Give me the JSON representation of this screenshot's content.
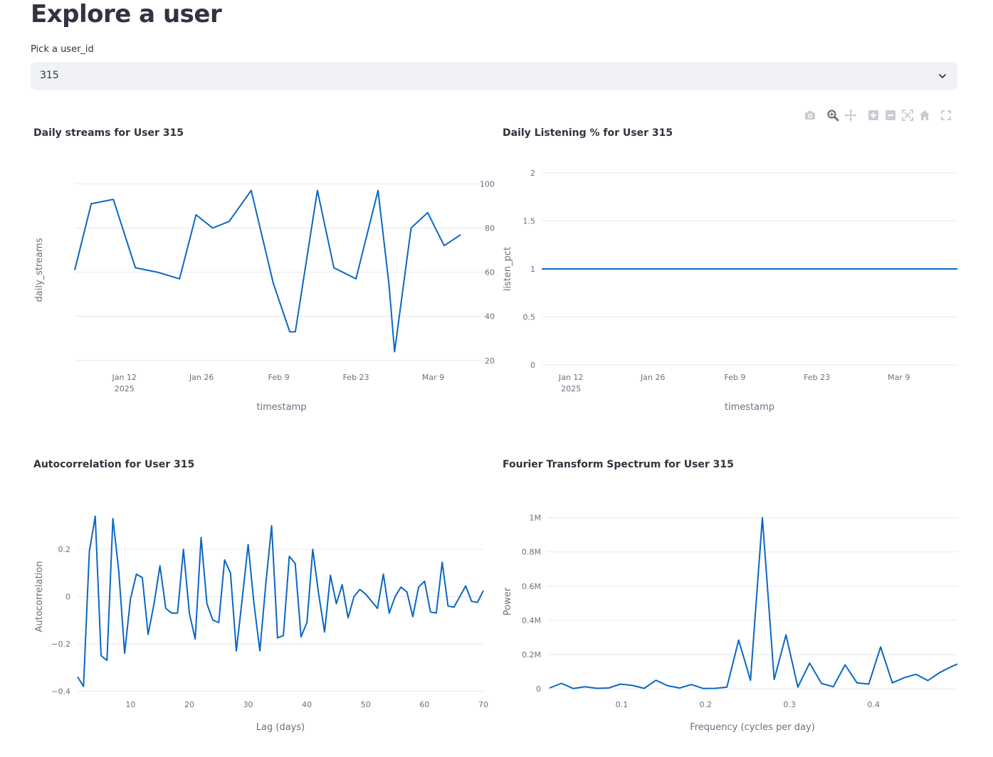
{
  "page": {
    "title": "Explore a user"
  },
  "user_select": {
    "label": "Pick a user_id",
    "value": "315"
  },
  "modebar": {
    "icons": [
      "camera-icon",
      "zoom-icon",
      "pan-icon",
      "zoom-in-icon",
      "zoom-out-icon",
      "autoscale-icon",
      "reset-axes-icon",
      "fullscreen-icon"
    ]
  },
  "colors": {
    "line": "#0b67c2",
    "grid": "#e6e9ef",
    "tick": "#6b7080",
    "accent_bg": "#f0f2f6"
  },
  "chart_data": [
    {
      "id": "streams",
      "type": "line",
      "title": "Daily streams for User 315",
      "xlabel": "timestamp",
      "ylabel": "daily_streams",
      "x_type": "date",
      "xlim": [
        "2025-01-03",
        "2025-03-19"
      ],
      "ylim": [
        18,
        104
      ],
      "xticks": [
        {
          "value": "2025-01-12",
          "label": "Jan 12",
          "sublabel": "2025"
        },
        {
          "value": "2025-01-26",
          "label": "Jan 26"
        },
        {
          "value": "2025-02-09",
          "label": "Feb 9"
        },
        {
          "value": "2025-02-23",
          "label": "Feb 23"
        },
        {
          "value": "2025-03-09",
          "label": "Mar 9"
        }
      ],
      "yticks": [
        {
          "value": 20,
          "label": "20"
        },
        {
          "value": 40,
          "label": "40"
        },
        {
          "value": 60,
          "label": "60"
        },
        {
          "value": 80,
          "label": "80"
        },
        {
          "value": 100,
          "label": "100"
        }
      ],
      "x": [
        "2025-01-03",
        "2025-01-06",
        "2025-01-10",
        "2025-01-14",
        "2025-01-18",
        "2025-01-22",
        "2025-01-25",
        "2025-01-28",
        "2025-01-31",
        "2025-02-04",
        "2025-02-08",
        "2025-02-11",
        "2025-02-12",
        "2025-02-16",
        "2025-02-19",
        "2025-02-23",
        "2025-02-27",
        "2025-03-01",
        "2025-03-02",
        "2025-03-05",
        "2025-03-08",
        "2025-03-11",
        "2025-03-14"
      ],
      "y": [
        61,
        91,
        93,
        62,
        60,
        57,
        86,
        80,
        83,
        97,
        55,
        33,
        33,
        97,
        62,
        57,
        97,
        54,
        24,
        80,
        87,
        72,
        77
      ]
    },
    {
      "id": "listening",
      "type": "line",
      "title": "Daily Listening % for User 315",
      "xlabel": "timestamp",
      "ylabel": "listen_pct",
      "x_type": "date",
      "xlim": [
        "2025-01-07",
        "2025-03-19"
      ],
      "ylim": [
        0,
        2
      ],
      "xticks": [
        {
          "value": "2025-01-12",
          "label": "Jan 12",
          "sublabel": "2025"
        },
        {
          "value": "2025-01-26",
          "label": "Jan 26"
        },
        {
          "value": "2025-02-09",
          "label": "Feb 9"
        },
        {
          "value": "2025-02-23",
          "label": "Feb 23"
        },
        {
          "value": "2025-03-09",
          "label": "Mar 9"
        }
      ],
      "yticks": [
        {
          "value": 0,
          "label": "0"
        },
        {
          "value": 0.5,
          "label": "0.5"
        },
        {
          "value": 1,
          "label": "1"
        },
        {
          "value": 1.5,
          "label": "1.5"
        },
        {
          "value": 2,
          "label": "2"
        }
      ],
      "x": [
        "2025-01-07",
        "2025-03-19"
      ],
      "y": [
        1,
        1
      ]
    },
    {
      "id": "autocorr",
      "type": "line",
      "title": "Autocorrelation for User 315",
      "xlabel": "Lag (days)",
      "ylabel": "Autocorrelation",
      "x_type": "linear",
      "xlim": [
        1,
        70
      ],
      "ylim": [
        -0.405,
        0.405
      ],
      "xticks": [
        {
          "value": 10,
          "label": "10"
        },
        {
          "value": 20,
          "label": "20"
        },
        {
          "value": 30,
          "label": "30"
        },
        {
          "value": 40,
          "label": "40"
        },
        {
          "value": 50,
          "label": "50"
        },
        {
          "value": 60,
          "label": "60"
        },
        {
          "value": 70,
          "label": "70"
        }
      ],
      "yticks": [
        {
          "value": -0.4,
          "label": "−0.4"
        },
        {
          "value": -0.2,
          "label": "−0.2"
        },
        {
          "value": 0,
          "label": "0"
        },
        {
          "value": 0.2,
          "label": "0.2"
        }
      ],
      "x": [
        1,
        2,
        3,
        4,
        5,
        6,
        7,
        8,
        9,
        10,
        11,
        12,
        13,
        14,
        15,
        16,
        17,
        18,
        19,
        20,
        21,
        22,
        23,
        24,
        25,
        26,
        27,
        28,
        29,
        30,
        31,
        32,
        33,
        34,
        35,
        36,
        37,
        38,
        39,
        40,
        41,
        42,
        43,
        44,
        45,
        46,
        47,
        48,
        49,
        50,
        51,
        52,
        53,
        54,
        55,
        56,
        57,
        58,
        59,
        60,
        61,
        62,
        63,
        64,
        65,
        66,
        67,
        68,
        69,
        70
      ],
      "y": [
        -0.34,
        -0.38,
        0.19,
        0.34,
        -0.25,
        -0.27,
        0.33,
        0.11,
        -0.24,
        -0.01,
        0.095,
        0.08,
        -0.16,
        -0.03,
        0.13,
        -0.05,
        -0.07,
        -0.07,
        0.2,
        -0.07,
        -0.18,
        0.25,
        -0.03,
        -0.1,
        -0.11,
        0.155,
        0.1,
        -0.23,
        -0.01,
        0.22,
        -0.03,
        -0.23,
        0.05,
        0.3,
        -0.175,
        -0.165,
        0.17,
        0.14,
        -0.17,
        -0.11,
        0.2,
        0.01,
        -0.15,
        0.09,
        -0.03,
        0.05,
        -0.09,
        0.0,
        0.03,
        0.01,
        -0.02,
        -0.05,
        0.095,
        -0.07,
        0.0,
        0.04,
        0.02,
        -0.085,
        0.04,
        0.065,
        -0.065,
        -0.07,
        0.145,
        -0.04,
        -0.045,
        0.0,
        0.045,
        -0.02,
        -0.025,
        0.025
      ]
    },
    {
      "id": "fourier",
      "type": "line",
      "title": "Fourier Transform Spectrum for User 315",
      "xlabel": "Frequency (cycles per day)",
      "ylabel": "Power",
      "x_type": "linear",
      "xlim": [
        0.0115,
        0.5
      ],
      "ylim": [
        -20000,
        1040000
      ],
      "xticks": [
        {
          "value": 0.1,
          "label": "0.1"
        },
        {
          "value": 0.2,
          "label": "0.2"
        },
        {
          "value": 0.3,
          "label": "0.3"
        },
        {
          "value": 0.4,
          "label": "0.4"
        }
      ],
      "yticks": [
        {
          "value": 0,
          "label": "0"
        },
        {
          "value": 200000,
          "label": "0.2M"
        },
        {
          "value": 400000,
          "label": "0.4M"
        },
        {
          "value": 600000,
          "label": "0.6M"
        },
        {
          "value": 800000,
          "label": "0.8M"
        },
        {
          "value": 1000000,
          "label": "1M"
        }
      ],
      "x": [
        0.0141,
        0.0282,
        0.0423,
        0.0563,
        0.0704,
        0.0845,
        0.0986,
        0.1127,
        0.1268,
        0.1408,
        0.1549,
        0.169,
        0.1831,
        0.1972,
        0.2113,
        0.2254,
        0.2394,
        0.2535,
        0.2676,
        0.2817,
        0.2958,
        0.3099,
        0.3239,
        0.338,
        0.3521,
        0.3662,
        0.3803,
        0.3944,
        0.4085,
        0.4225,
        0.4366,
        0.4507,
        0.4648,
        0.4789,
        0.493,
        0.5
      ],
      "y": [
        5000,
        32000,
        2000,
        12000,
        3000,
        5000,
        28000,
        20000,
        3000,
        50000,
        18000,
        5000,
        25000,
        2000,
        3000,
        10000,
        285000,
        50000,
        1000000,
        55000,
        315000,
        10000,
        150000,
        32000,
        12000,
        140000,
        35000,
        28000,
        245000,
        35000,
        65000,
        85000,
        48000,
        95000,
        130000,
        145000
      ]
    }
  ]
}
